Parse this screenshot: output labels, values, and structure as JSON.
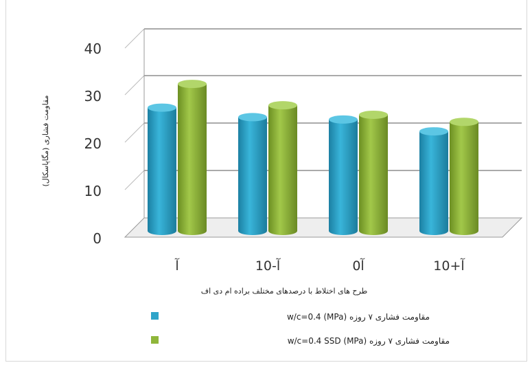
{
  "chart_data": {
    "type": "bar",
    "categories": [
      "آ",
      "آ-10",
      "آ0",
      "آ+10"
    ],
    "series": [
      {
        "name": "مقاومت فشاری ۷ روزه w/c=0.4 (MPa)",
        "values": [
          26,
          24,
          23.5,
          21
        ]
      },
      {
        "name": "مقاومت فشاری ۷ روزه w/c=0.4 SSD (MPa)",
        "values": [
          31,
          26.5,
          24.5,
          23
        ]
      }
    ],
    "yticks": [
      "0",
      "10",
      "20",
      "30",
      "40"
    ],
    "ylim": [
      0,
      40
    ],
    "xlabel": "طرح های اختلاط با درصدهای مختلف براده ام دی اف",
    "ylabel": "مقاومت فشاری (مگاپاسکال)",
    "grid": true,
    "legend_position": "bottom",
    "colors": [
      "#2fa4c9",
      "#8fb63a"
    ]
  }
}
